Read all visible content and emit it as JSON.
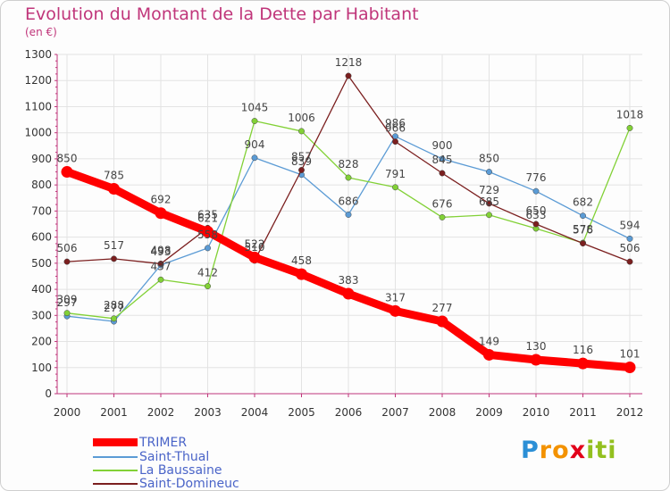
{
  "chart_data": {
    "type": "line",
    "title": "Evolution du Montant de la Dette par Habitant",
    "subtitle": "(en €)",
    "xlabel": "",
    "ylabel": "",
    "ylim": [
      0,
      1300
    ],
    "yticks": [
      0,
      100,
      200,
      300,
      400,
      500,
      600,
      700,
      800,
      900,
      1000,
      1100,
      1200,
      1300
    ],
    "categories": [
      "2000",
      "2001",
      "2002",
      "2003",
      "2004",
      "2005",
      "2006",
      "2007",
      "2008",
      "2009",
      "2010",
      "2011",
      "2012"
    ],
    "grid": true,
    "legend_position": "bottom-left",
    "series": [
      {
        "name": "TRIMER",
        "color": "#ff0000",
        "values": [
          850,
          785,
          692,
          621,
          522,
          458,
          383,
          317,
          277,
          149,
          130,
          116,
          101
        ]
      },
      {
        "name": "Saint-Thual",
        "color": "#5b9bd5",
        "values": [
          297,
          277,
          493,
          558,
          904,
          839,
          686,
          986,
          900,
          850,
          776,
          682,
          594
        ]
      },
      {
        "name": "La Baussaine",
        "color": "#82d136",
        "values": [
          309,
          288,
          437,
          412,
          1045,
          1006,
          828,
          791,
          676,
          685,
          633,
          578,
          1018
        ]
      },
      {
        "name": "Saint-Domineuc",
        "color": "#7b1f1f",
        "values": [
          506,
          517,
          498,
          635,
          510,
          857,
          1218,
          966,
          845,
          729,
          650,
          576,
          506
        ]
      }
    ]
  },
  "logo": {
    "letters": [
      {
        "ch": "P",
        "color": "#2b8fd6"
      },
      {
        "ch": "r",
        "color": "#f39200"
      },
      {
        "ch": "o",
        "color": "#f39200"
      },
      {
        "ch": "x",
        "color": "#e2001a"
      },
      {
        "ch": "i",
        "color": "#93c01f"
      },
      {
        "ch": "t",
        "color": "#93c01f"
      },
      {
        "ch": "i",
        "color": "#93c01f"
      }
    ]
  }
}
